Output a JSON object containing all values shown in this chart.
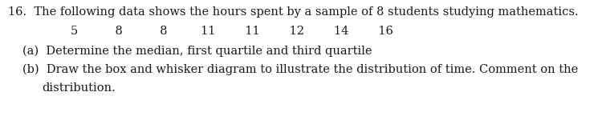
{
  "line1_num": "16.",
  "line1_text": "The following data shows the hours spent by a sample of 8 students studying mathematics.",
  "line2": "5          8          8         11        11        12        14        16",
  "line3_label": "(a)",
  "line3_text": "Determine the median, first quartile and third quartile",
  "line4_label": "(b)",
  "line4_text": "Draw the box and whisker diagram to illustrate the distribution of time. Comment on the",
  "line5": "distribution.",
  "font_size": 10.5,
  "font_color": "#1a1a1a",
  "background_color": "#ffffff",
  "font_family": "serif",
  "fig_width": 7.45,
  "fig_height": 1.55,
  "dpi": 100
}
